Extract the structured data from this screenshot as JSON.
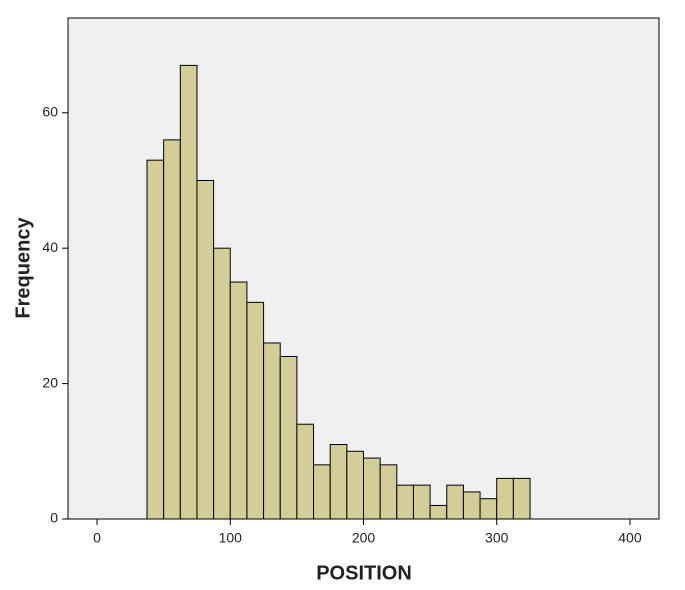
{
  "chart_data": {
    "type": "histogram",
    "xlabel": "POSITION",
    "ylabel": "Frequency",
    "bins": [
      37.5,
      50,
      62.5,
      75,
      87.5,
      100,
      112.5,
      125,
      137.5,
      150,
      162.5,
      175,
      187.5,
      200,
      212.5,
      225,
      237.5,
      250,
      262.5,
      275,
      287.5,
      300,
      312.5,
      325
    ],
    "counts": [
      53,
      56,
      67,
      50,
      40,
      35,
      32,
      26,
      24,
      14,
      8,
      11,
      10,
      9,
      8,
      5,
      5,
      2,
      5,
      4,
      3,
      6,
      6
    ],
    "color": "#d3ce98",
    "xlim": [
      -21.8,
      421.8
    ],
    "xticks": [
      0,
      100,
      200,
      300,
      400
    ],
    "ylim": [
      0,
      74
    ],
    "yticks": [
      0,
      20,
      40,
      60
    ]
  }
}
